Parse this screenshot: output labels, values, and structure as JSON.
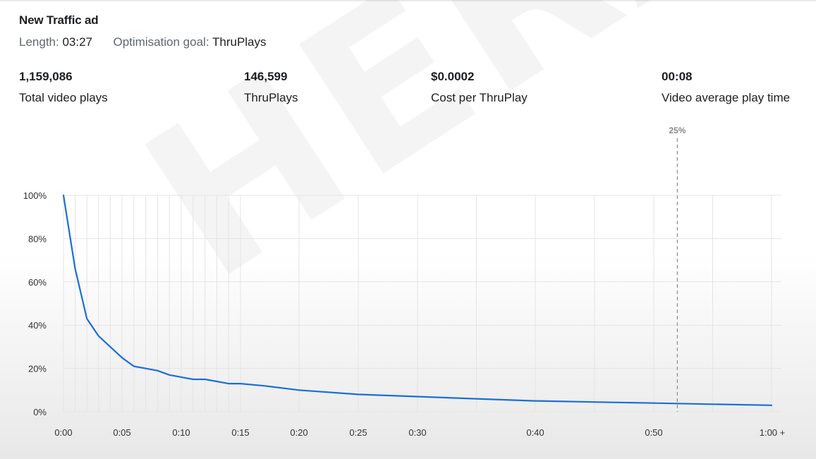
{
  "ad": {
    "title": "New Traffic ad",
    "length_label": "Length:",
    "length_value": "03:27",
    "goal_label": "Optimisation goal:",
    "goal_value": "ThruPlays"
  },
  "stats": [
    {
      "value": "1,159,086",
      "label": "Total video plays"
    },
    {
      "value": "146,599",
      "label": "ThruPlays"
    },
    {
      "value": "$0.0002",
      "label": "Cost per ThruPlay"
    },
    {
      "value": "00:08",
      "label": "Video average play time"
    }
  ],
  "watermark": "HERA",
  "chart_data": {
    "type": "line",
    "title": "",
    "xlabel": "",
    "ylabel": "",
    "x_ticks": [
      "0:00",
      "0:05",
      "0:10",
      "0:15",
      "0:20",
      "0:25",
      "0:30",
      "0:40",
      "0:50",
      "1:00 +"
    ],
    "y_ticks": [
      "0%",
      "20%",
      "40%",
      "60%",
      "80%",
      "100%"
    ],
    "ylim": [
      0,
      100
    ],
    "grid": true,
    "line_color": "#1a6fd6",
    "marker": {
      "label": "25%",
      "x_seconds": 52
    },
    "series": [
      {
        "x": [
          0,
          1,
          2,
          3,
          4,
          5,
          6,
          7,
          8,
          9,
          10,
          11,
          12,
          13,
          14,
          15,
          17,
          20,
          25,
          30,
          35,
          40,
          45,
          50,
          55,
          60
        ],
        "y": [
          100,
          66,
          43,
          35,
          30,
          25,
          21,
          20,
          19,
          17,
          16,
          15,
          15,
          14,
          13,
          13,
          12,
          10,
          8,
          7,
          6,
          5,
          4.5,
          4,
          3.5,
          3
        ]
      }
    ]
  }
}
